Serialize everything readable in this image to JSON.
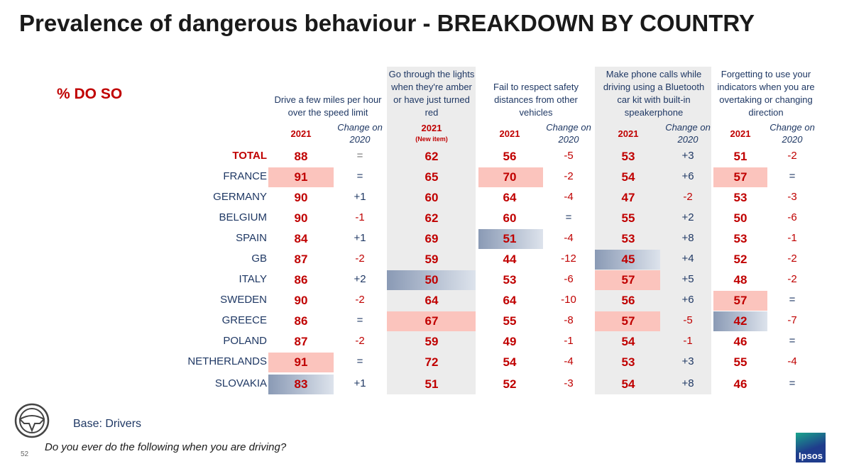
{
  "title": "Prevalence of dangerous behaviour - BREAKDOWN BY COUNTRY",
  "subtitle": "% DO SO",
  "columns": [
    {
      "header": "Drive a few miles per hour over the speed limit",
      "year": "2021",
      "change": "Change on 2020"
    },
    {
      "header": "Go through the lights when they're amber or have just turned red",
      "year": "2021",
      "note": "(New item)"
    },
    {
      "header": "Fail to respect safety distances from other vehicles",
      "year": "2021",
      "change": "Change on 2020"
    },
    {
      "header": "Make phone calls while driving using a Bluetooth car kit with built-in speakerphone",
      "year": "2021",
      "change": "Change on 2020"
    },
    {
      "header": "Forgetting to use your indicators when you are overtaking or changing direction",
      "year": "2021",
      "change": "Change on 2020"
    }
  ],
  "rows": [
    {
      "label": "TOTAL",
      "cells": [
        "88",
        "=",
        "62",
        "56",
        "-5",
        "53",
        "+3",
        "51",
        "-2"
      ]
    },
    {
      "label": "FRANCE",
      "cells": [
        "91",
        "=",
        "65",
        "70",
        "-2",
        "54",
        "+6",
        "57",
        "="
      ]
    },
    {
      "label": "GERMANY",
      "cells": [
        "90",
        "+1",
        "60",
        "64",
        "-4",
        "47",
        "-2",
        "53",
        "-3"
      ]
    },
    {
      "label": "BELGIUM",
      "cells": [
        "90",
        "-1",
        "62",
        "60",
        "=",
        "55",
        "+2",
        "50",
        "-6"
      ]
    },
    {
      "label": "SPAIN",
      "cells": [
        "84",
        "+1",
        "69",
        "51",
        "-4",
        "53",
        "+8",
        "53",
        "-1"
      ]
    },
    {
      "label": "GB",
      "cells": [
        "87",
        "-2",
        "59",
        "44",
        "-12",
        "45",
        "+4",
        "52",
        "-2"
      ]
    },
    {
      "label": "ITALY",
      "cells": [
        "86",
        "+2",
        "50",
        "53",
        "-6",
        "57",
        "+5",
        "48",
        "-2"
      ]
    },
    {
      "label": "SWEDEN",
      "cells": [
        "90",
        "-2",
        "64",
        "64",
        "-10",
        "56",
        "+6",
        "57",
        "="
      ]
    },
    {
      "label": "GREECE",
      "cells": [
        "86",
        "=",
        "67",
        "55",
        "-8",
        "57",
        "-5",
        "42",
        "-7"
      ]
    },
    {
      "label": "POLAND",
      "cells": [
        "87",
        "-2",
        "59",
        "49",
        "-1",
        "54",
        "-1",
        "46",
        "="
      ]
    },
    {
      "label": "NETHERLANDS",
      "cells": [
        "91",
        "=",
        "72",
        "54",
        "-4",
        "53",
        "+3",
        "55",
        "-4"
      ]
    },
    {
      "label": "SLOVAKIA",
      "cells": [
        "83",
        "+1",
        "51",
        "52",
        "-3",
        "54",
        "+8",
        "46",
        "="
      ]
    }
  ],
  "footer": {
    "base": "Base: Drivers",
    "question": "Do you ever do the following when you are driving?",
    "page": "52",
    "logo": "Ipsos"
  }
}
